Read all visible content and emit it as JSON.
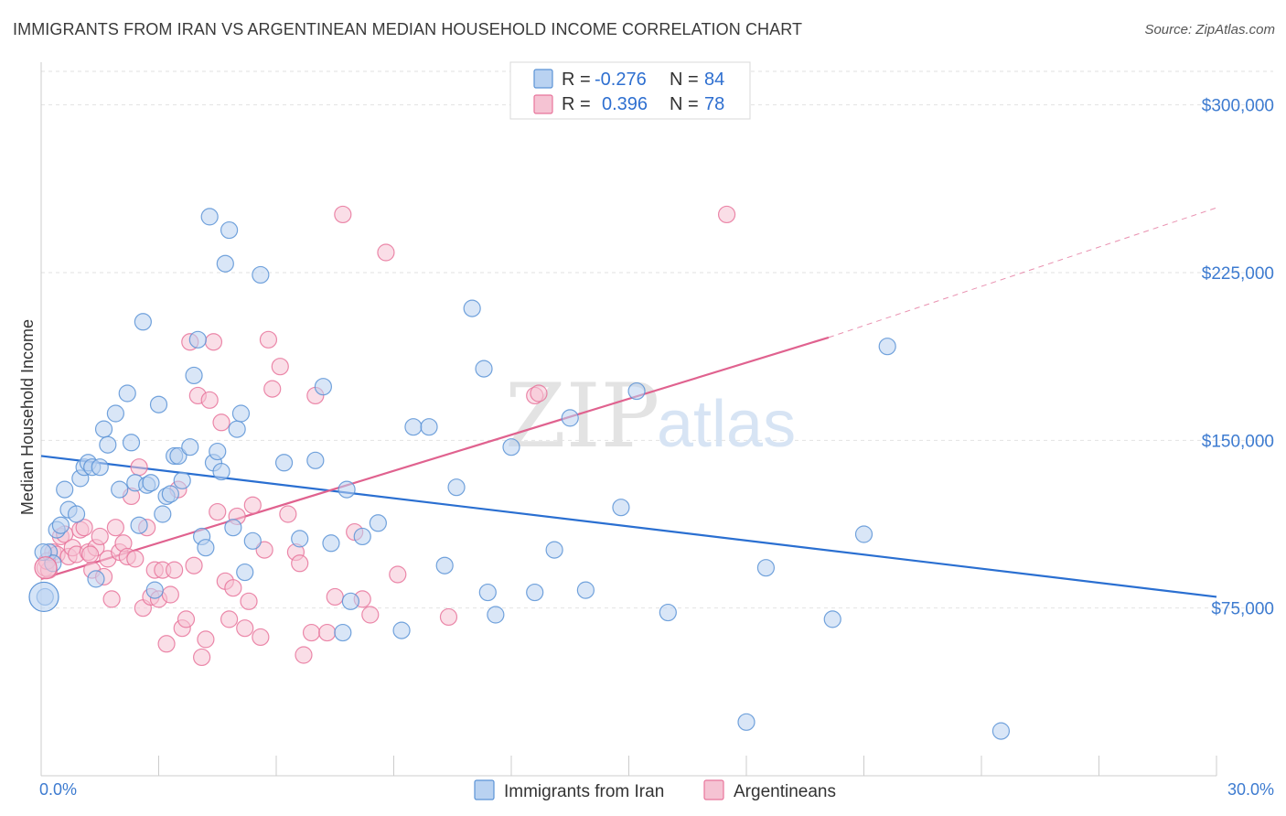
{
  "title": "IMMIGRANTS FROM IRAN VS ARGENTINEAN MEDIAN HOUSEHOLD INCOME CORRELATION CHART",
  "source": "Source: ZipAtlas.com",
  "watermark": {
    "zip": "ZIP",
    "atlas": "atlas"
  },
  "colors": {
    "blue": "#5b93d6",
    "blue_fill": "#b9d2f1",
    "blue_line": "#2a6fd1",
    "pink": "#e8749b",
    "pink_fill": "#f5c3d3",
    "pink_line": "#e0628f",
    "tick_label": "#3d7bd0"
  },
  "legend": {
    "rows": [
      {
        "r_label": "R =",
        "r_value": "-0.276",
        "n_label": "N =",
        "n_value": "84"
      },
      {
        "r_label": "R =",
        "r_value": "0.396",
        "n_label": "N =",
        "n_value": "78"
      }
    ]
  },
  "chart_data": {
    "type": "scatter",
    "title": "IMMIGRANTS FROM IRAN VS ARGENTINEAN MEDIAN HOUSEHOLD INCOME CORRELATION CHART",
    "xlabel": "",
    "ylabel": "Median Household Income",
    "xlim": [
      0,
      30
    ],
    "ylim": [
      0,
      315000
    ],
    "x_tick_labels": [
      "0.0%",
      "30.0%"
    ],
    "y_ticks": [
      75000,
      150000,
      225000,
      300000
    ],
    "y_tick_labels": [
      "$75,000",
      "$150,000",
      "$225,000",
      "$300,000"
    ],
    "grid": true,
    "legend_position": "top-center",
    "series": [
      {
        "name": "Immigrants from Iran",
        "color": "#5b93d6",
        "trend": {
          "x": [
            0,
            30
          ],
          "y": [
            143000,
            80000
          ],
          "dashed_extension": false
        },
        "points": [
          [
            0.1,
            80000
          ],
          [
            0.2,
            100000
          ],
          [
            0.3,
            95000
          ],
          [
            0.4,
            110000
          ],
          [
            0.5,
            112000
          ],
          [
            0.6,
            128000
          ],
          [
            0.7,
            119000
          ],
          [
            0.9,
            117000
          ],
          [
            1.0,
            133000
          ],
          [
            1.1,
            138000
          ],
          [
            1.2,
            140000
          ],
          [
            1.3,
            138000
          ],
          [
            1.4,
            88000
          ],
          [
            1.5,
            138000
          ],
          [
            1.6,
            155000
          ],
          [
            1.7,
            148000
          ],
          [
            1.9,
            162000
          ],
          [
            2.0,
            128000
          ],
          [
            2.2,
            171000
          ],
          [
            2.3,
            149000
          ],
          [
            2.4,
            131000
          ],
          [
            2.5,
            112000
          ],
          [
            2.6,
            203000
          ],
          [
            2.7,
            130000
          ],
          [
            2.8,
            131000
          ],
          [
            2.9,
            83000
          ],
          [
            3.0,
            166000
          ],
          [
            3.1,
            117000
          ],
          [
            3.2,
            125000
          ],
          [
            3.3,
            126000
          ],
          [
            3.4,
            143000
          ],
          [
            3.5,
            143000
          ],
          [
            3.6,
            132000
          ],
          [
            3.8,
            147000
          ],
          [
            3.9,
            179000
          ],
          [
            4.0,
            195000
          ],
          [
            4.1,
            107000
          ],
          [
            4.2,
            102000
          ],
          [
            4.3,
            250000
          ],
          [
            4.4,
            140000
          ],
          [
            4.5,
            145000
          ],
          [
            4.6,
            136000
          ],
          [
            4.7,
            229000
          ],
          [
            4.8,
            244000
          ],
          [
            4.9,
            111000
          ],
          [
            5.0,
            155000
          ],
          [
            5.1,
            162000
          ],
          [
            5.2,
            91000
          ],
          [
            5.4,
            105000
          ],
          [
            5.6,
            224000
          ],
          [
            6.2,
            140000
          ],
          [
            6.6,
            106000
          ],
          [
            7.0,
            141000
          ],
          [
            7.2,
            174000
          ],
          [
            7.4,
            104000
          ],
          [
            7.7,
            64000
          ],
          [
            7.8,
            128000
          ],
          [
            7.9,
            78000
          ],
          [
            8.2,
            107000
          ],
          [
            8.6,
            113000
          ],
          [
            9.2,
            65000
          ],
          [
            9.5,
            156000
          ],
          [
            9.9,
            156000
          ],
          [
            10.3,
            94000
          ],
          [
            10.6,
            129000
          ],
          [
            11.0,
            209000
          ],
          [
            11.3,
            182000
          ],
          [
            11.4,
            82000
          ],
          [
            11.6,
            72000
          ],
          [
            12.0,
            147000
          ],
          [
            12.6,
            82000
          ],
          [
            13.1,
            101000
          ],
          [
            13.5,
            160000
          ],
          [
            13.9,
            83000
          ],
          [
            14.8,
            120000
          ],
          [
            15.2,
            172000
          ],
          [
            16.0,
            73000
          ],
          [
            18.0,
            24000
          ],
          [
            18.5,
            93000
          ],
          [
            20.2,
            70000
          ],
          [
            21.0,
            108000
          ],
          [
            21.6,
            192000
          ],
          [
            24.5,
            20000
          ],
          [
            0.05,
            100000
          ]
        ]
      },
      {
        "name": "Argentineans",
        "color": "#e8749b",
        "trend": {
          "x": [
            0,
            20.1
          ],
          "y": [
            88000,
            196000
          ],
          "dashed_extension": {
            "x": [
              20.1,
              30
            ],
            "y": [
              196000,
              254000
            ]
          }
        },
        "points": [
          [
            0.1,
            93000
          ],
          [
            0.2,
            92000
          ],
          [
            0.3,
            100000
          ],
          [
            0.4,
            99000
          ],
          [
            0.5,
            107000
          ],
          [
            0.6,
            108000
          ],
          [
            0.7,
            98000
          ],
          [
            0.8,
            102000
          ],
          [
            0.9,
            99000
          ],
          [
            1.0,
            110000
          ],
          [
            1.1,
            111000
          ],
          [
            1.2,
            100000
          ],
          [
            1.3,
            92000
          ],
          [
            1.4,
            102000
          ],
          [
            1.5,
            107000
          ],
          [
            1.6,
            89000
          ],
          [
            1.7,
            97000
          ],
          [
            1.8,
            79000
          ],
          [
            1.9,
            111000
          ],
          [
            2.0,
            100000
          ],
          [
            2.1,
            104000
          ],
          [
            2.2,
            98000
          ],
          [
            2.3,
            125000
          ],
          [
            2.4,
            97000
          ],
          [
            2.5,
            138000
          ],
          [
            2.6,
            75000
          ],
          [
            2.7,
            111000
          ],
          [
            2.8,
            80000
          ],
          [
            2.9,
            92000
          ],
          [
            3.0,
            79000
          ],
          [
            3.1,
            92000
          ],
          [
            3.2,
            59000
          ],
          [
            3.3,
            81000
          ],
          [
            3.4,
            92000
          ],
          [
            3.5,
            128000
          ],
          [
            3.6,
            66000
          ],
          [
            3.7,
            70000
          ],
          [
            3.8,
            194000
          ],
          [
            3.9,
            94000
          ],
          [
            4.0,
            170000
          ],
          [
            4.1,
            53000
          ],
          [
            4.2,
            61000
          ],
          [
            4.3,
            168000
          ],
          [
            4.4,
            194000
          ],
          [
            4.5,
            118000
          ],
          [
            4.6,
            158000
          ],
          [
            4.7,
            87000
          ],
          [
            4.8,
            70000
          ],
          [
            5.0,
            116000
          ],
          [
            5.2,
            66000
          ],
          [
            5.3,
            78000
          ],
          [
            5.4,
            121000
          ],
          [
            5.6,
            62000
          ],
          [
            5.7,
            101000
          ],
          [
            5.8,
            195000
          ],
          [
            5.9,
            173000
          ],
          [
            6.1,
            183000
          ],
          [
            6.3,
            117000
          ],
          [
            6.5,
            100000
          ],
          [
            6.6,
            95000
          ],
          [
            6.7,
            54000
          ],
          [
            6.9,
            64000
          ],
          [
            7.0,
            170000
          ],
          [
            7.3,
            64000
          ],
          [
            7.5,
            80000
          ],
          [
            7.7,
            251000
          ],
          [
            8.0,
            109000
          ],
          [
            8.2,
            79000
          ],
          [
            8.4,
            72000
          ],
          [
            8.8,
            234000
          ],
          [
            9.1,
            90000
          ],
          [
            10.4,
            71000
          ],
          [
            12.6,
            170000
          ],
          [
            12.7,
            171000
          ],
          [
            17.5,
            251000
          ],
          [
            0.15,
            96000
          ],
          [
            1.25,
            99000
          ],
          [
            4.9,
            84000
          ]
        ]
      }
    ]
  },
  "bottom_legend": [
    {
      "label": "Immigrants from Iran"
    },
    {
      "label": "Argentineans"
    }
  ]
}
